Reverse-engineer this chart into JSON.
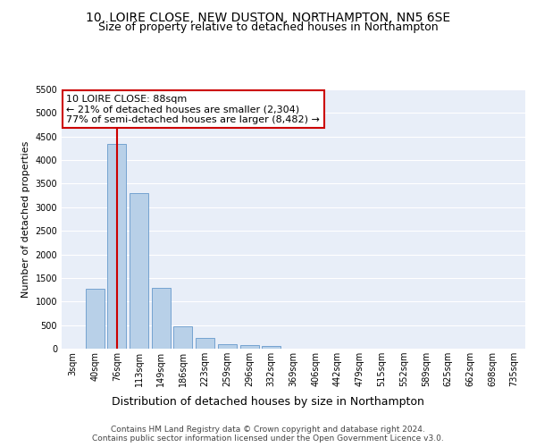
{
  "title_line1": "10, LOIRE CLOSE, NEW DUSTON, NORTHAMPTON, NN5 6SE",
  "title_line2": "Size of property relative to detached houses in Northampton",
  "xlabel": "Distribution of detached houses by size in Northampton",
  "ylabel": "Number of detached properties",
  "categories": [
    "3sqm",
    "40sqm",
    "76sqm",
    "113sqm",
    "149sqm",
    "186sqm",
    "223sqm",
    "259sqm",
    "296sqm",
    "332sqm",
    "369sqm",
    "406sqm",
    "442sqm",
    "479sqm",
    "515sqm",
    "552sqm",
    "589sqm",
    "625sqm",
    "662sqm",
    "698sqm",
    "735sqm"
  ],
  "values": [
    0,
    1270,
    4350,
    3300,
    1290,
    480,
    220,
    90,
    70,
    55,
    0,
    0,
    0,
    0,
    0,
    0,
    0,
    0,
    0,
    0,
    0
  ],
  "bar_color": "#b8d0e8",
  "bar_edge_color": "#6699cc",
  "vline_x": 2.0,
  "vline_color": "#cc0000",
  "annotation_text": "10 LOIRE CLOSE: 88sqm\n← 21% of detached houses are smaller (2,304)\n77% of semi-detached houses are larger (8,482) →",
  "annotation_box_color": "#ffffff",
  "annotation_box_edge": "#cc0000",
  "ylim": [
    0,
    5500
  ],
  "yticks": [
    0,
    500,
    1000,
    1500,
    2000,
    2500,
    3000,
    3500,
    4000,
    4500,
    5000,
    5500
  ],
  "bg_color": "#e8eef8",
  "grid_color": "#ffffff",
  "footer_text": "Contains HM Land Registry data © Crown copyright and database right 2024.\nContains public sector information licensed under the Open Government Licence v3.0.",
  "title_fontsize": 10,
  "subtitle_fontsize": 9,
  "tick_fontsize": 7,
  "ylabel_fontsize": 8,
  "xlabel_fontsize": 9,
  "footer_fontsize": 6.5
}
